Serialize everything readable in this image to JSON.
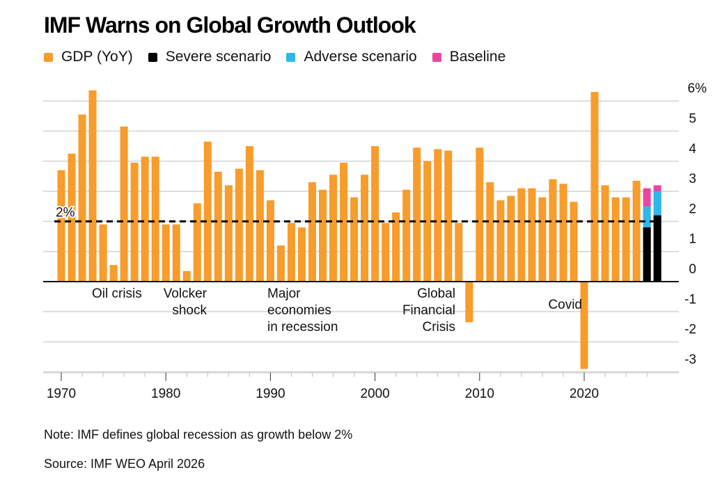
{
  "title": "IMF Warns on Global Growth Outlook",
  "legend": [
    {
      "label": "GDP (YoY)",
      "color": "#F89C2C"
    },
    {
      "label": "Severe scenario",
      "color": "#000000"
    },
    {
      "label": "Adverse scenario",
      "color": "#2FB7EC"
    },
    {
      "label": "Baseline",
      "color": "#E8479F"
    }
  ],
  "note": "Note: IMF defines global recession as growth below 2%",
  "source": "Source: IMF WEO April 2026",
  "chart_data": {
    "type": "bar",
    "title": "IMF Warns on Global Growth Outlook",
    "xlabel": "",
    "ylabel": "",
    "ylim": [
      -3,
      6
    ],
    "yticks": [
      6,
      5,
      4,
      3,
      2,
      1,
      0,
      -1,
      -2,
      -3
    ],
    "ytick_labels": [
      "6%",
      "5",
      "4",
      "3",
      "2",
      "1",
      "0",
      "-1",
      "-2",
      "-3"
    ],
    "y_axis_side": "right",
    "xticks": [
      1970,
      1980,
      1990,
      2000,
      2010,
      2020
    ],
    "xtick_labels": [
      "1970",
      "1980",
      "1990",
      "2000",
      "2010",
      "2020"
    ],
    "grid": true,
    "legend_position": "top-left",
    "reference_line": {
      "value": 2,
      "label": "2%",
      "style": "dashed"
    },
    "series": [
      {
        "name": "GDP (YoY)",
        "color": "#F89C2C",
        "x": [
          1970,
          1971,
          1972,
          1973,
          1974,
          1975,
          1976,
          1977,
          1978,
          1979,
          1980,
          1981,
          1982,
          1983,
          1984,
          1985,
          1986,
          1987,
          1988,
          1989,
          1990,
          1991,
          1992,
          1993,
          1994,
          1995,
          1996,
          1997,
          1998,
          1999,
          2000,
          2001,
          2002,
          2003,
          2004,
          2005,
          2006,
          2007,
          2008,
          2009,
          2010,
          2011,
          2012,
          2013,
          2014,
          2015,
          2016,
          2017,
          2018,
          2019,
          2020,
          2021,
          2022,
          2023,
          2024,
          2025
        ],
        "values": [
          3.7,
          4.25,
          5.55,
          6.35,
          1.9,
          0.55,
          5.15,
          3.95,
          4.15,
          4.15,
          1.9,
          1.9,
          0.35,
          2.6,
          4.65,
          3.65,
          3.2,
          3.75,
          4.5,
          3.7,
          2.7,
          1.2,
          1.95,
          1.8,
          3.3,
          3.05,
          3.55,
          3.95,
          2.8,
          3.55,
          4.5,
          1.95,
          2.3,
          3.05,
          4.45,
          4.0,
          4.4,
          4.35,
          1.95,
          -1.35,
          4.45,
          3.3,
          2.7,
          2.85,
          3.1,
          3.1,
          2.8,
          3.4,
          3.25,
          2.65,
          -2.9,
          6.3,
          3.2,
          2.8,
          2.8,
          3.35
        ]
      },
      {
        "name": "Severe scenario",
        "color": "#000000",
        "x": [
          2026,
          2027
        ],
        "values": [
          1.8,
          2.2
        ]
      },
      {
        "name": "Adverse scenario",
        "color": "#2FB7EC",
        "x": [
          2026,
          2027
        ],
        "values": [
          2.5,
          3.0
        ]
      },
      {
        "name": "Baseline",
        "color": "#E8479F",
        "x": [
          2026,
          2027
        ],
        "values": [
          3.1,
          3.2
        ]
      }
    ],
    "annotations": [
      {
        "text": [
          "Oil crisis"
        ],
        "year": 1975
      },
      {
        "text": [
          "Volcker",
          "shock"
        ],
        "year": 1982
      },
      {
        "text": [
          "Major",
          "economies",
          "in recession"
        ],
        "year": 1991
      },
      {
        "text": [
          "Global",
          "Financial",
          "Crisis"
        ],
        "year": 2009
      },
      {
        "text": [
          "Covid"
        ],
        "year": 2020
      }
    ]
  }
}
